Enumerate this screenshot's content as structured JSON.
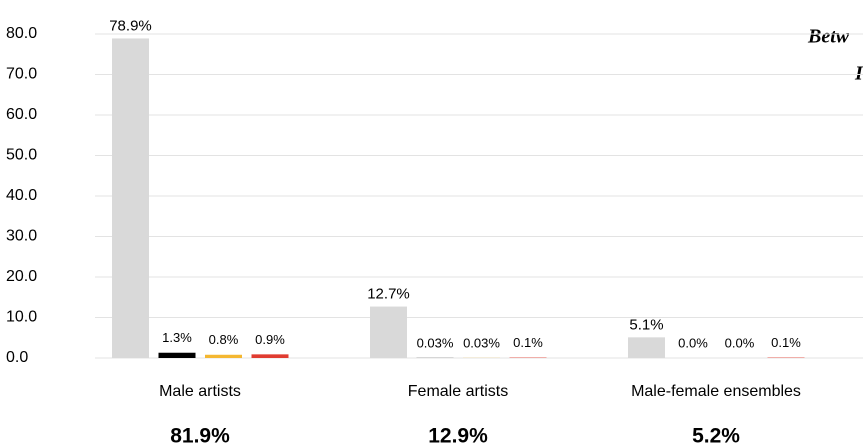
{
  "chart_data": {
    "type": "bar",
    "title_fragments": [
      "Betw",
      "I"
    ],
    "categories": [
      "Male artists",
      "Female artists",
      "Male-female ensembles"
    ],
    "annotations": [
      "81.9%",
      "12.9%",
      "5.2%"
    ],
    "series": [
      {
        "color": "#d9d9d9",
        "values": [
          78.9,
          12.7,
          5.1
        ],
        "value_labels": [
          "78.9%",
          "12.7%",
          "5.1%"
        ]
      },
      {
        "color": "#000000",
        "values": [
          1.3,
          0.03,
          0.0
        ],
        "value_labels": [
          "1.3%",
          "0.03%",
          "0.0%"
        ]
      },
      {
        "color": "#f4b731",
        "values": [
          0.8,
          0.03,
          0.0
        ],
        "value_labels": [
          "0.8%",
          "0.03%",
          "0.0%"
        ]
      },
      {
        "color": "#e03c31",
        "values": [
          0.9,
          0.1,
          0.1
        ],
        "value_labels": [
          "0.9%",
          "0.1%",
          "0.1%"
        ]
      }
    ],
    "ylim": [
      0,
      80
    ],
    "yticks": [
      {
        "value": 0,
        "label": "0.0"
      },
      {
        "value": 10,
        "label": "10.0"
      },
      {
        "value": 20,
        "label": "20.0"
      },
      {
        "value": 30,
        "label": "30.0"
      },
      {
        "value": 40,
        "label": "40.0"
      },
      {
        "value": 50,
        "label": "50.0"
      },
      {
        "value": 60,
        "label": "60.0"
      },
      {
        "value": 70,
        "label": "70.0"
      },
      {
        "value": 80,
        "label": "80.0"
      }
    ],
    "grid": true
  }
}
